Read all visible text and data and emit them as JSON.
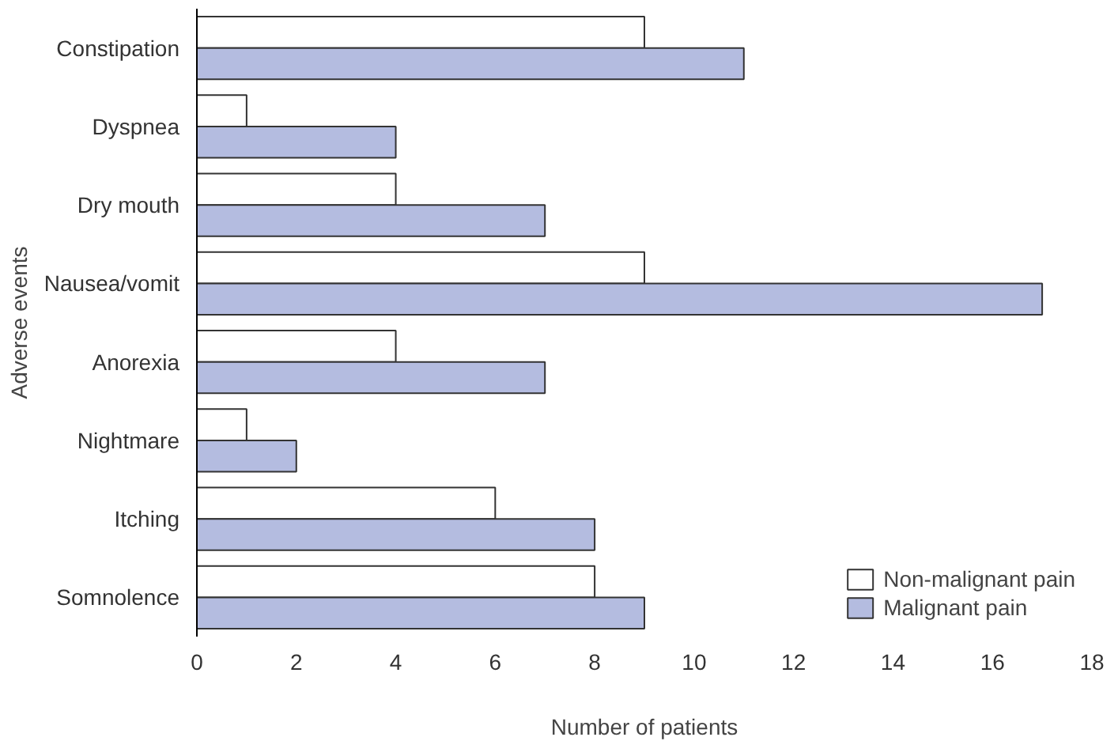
{
  "chart_data": {
    "type": "bar",
    "orientation": "horizontal",
    "xlabel": "Number of patients",
    "ylabel": "Adverse events",
    "categories": [
      "Constipation",
      "Dyspnea",
      "Dry mouth",
      "Nausea/vomit",
      "Anorexia",
      "Nightmare",
      "Itching",
      "Somnolence"
    ],
    "series": [
      {
        "name": "Non-malignant pain",
        "color": "#ffffff",
        "values": [
          9,
          1,
          4,
          9,
          4,
          1,
          6,
          8
        ]
      },
      {
        "name": "Malignant pain",
        "color": "#b4bce0",
        "values": [
          11,
          4,
          7,
          17,
          7,
          2,
          8,
          9
        ]
      }
    ],
    "xlim": [
      0,
      18
    ],
    "xticks": [
      0,
      2,
      4,
      6,
      8,
      10,
      12,
      14,
      16,
      18
    ],
    "grid": false,
    "legend": "bottom right"
  }
}
